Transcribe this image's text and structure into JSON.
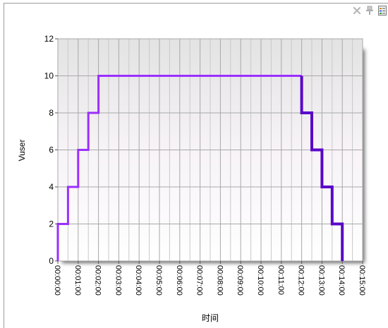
{
  "toolbar": {
    "icons": [
      "close-icon",
      "pin-icon",
      "legend-icon"
    ]
  },
  "chart_data": {
    "type": "line",
    "xlabel": "时间",
    "ylabel": "Vuser",
    "ylim": [
      0,
      12
    ],
    "xlim": [
      0,
      900
    ],
    "x_tick_labels": [
      "00:00:00",
      "00:01:00",
      "00:02:00",
      "00:03:00",
      "00:04:00",
      "00:05:00",
      "00:06:00",
      "00:07:00",
      "00:08:00",
      "00:09:00",
      "00:10:00",
      "00:11:00",
      "00:12:00",
      "00:13:00",
      "00:14:00",
      "00:15:00"
    ],
    "y_tick_labels": [
      "0",
      "2",
      "4",
      "6",
      "8",
      "10",
      "12"
    ],
    "grid": true,
    "series": [
      {
        "phase": "ramp-up",
        "color": "#9b2fff",
        "x": [
          0,
          0,
          30,
          30,
          60,
          60,
          90,
          90,
          120,
          120,
          720
        ],
        "y": [
          0,
          2,
          2,
          4,
          4,
          6,
          6,
          8,
          8,
          10,
          10
        ]
      },
      {
        "phase": "ramp-down",
        "color": "#5a06c8",
        "x": [
          720,
          720,
          750,
          750,
          780,
          780,
          810,
          810,
          840,
          840
        ],
        "y": [
          10,
          8,
          8,
          6,
          6,
          4,
          4,
          2,
          2,
          0
        ]
      }
    ]
  }
}
